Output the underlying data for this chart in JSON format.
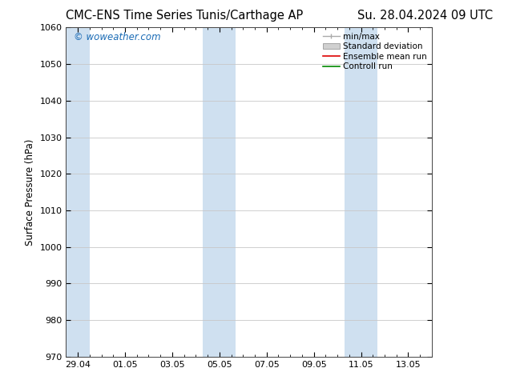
{
  "title_left": "CMC-ENS Time Series Tunis/Carthage AP",
  "title_right": "Su. 28.04.2024 09 UTC",
  "ylabel": "Surface Pressure (hPa)",
  "ylim": [
    970,
    1060
  ],
  "yticks": [
    970,
    980,
    990,
    1000,
    1010,
    1020,
    1030,
    1040,
    1050,
    1060
  ],
  "xtick_labels": [
    "29.04",
    "01.05",
    "03.05",
    "05.05",
    "07.05",
    "09.05",
    "11.05",
    "13.05"
  ],
  "xlim": [
    0,
    15.5
  ],
  "shaded_bands": [
    {
      "x_start": 0.0,
      "x_end": 1.0,
      "color": "#cfe0f0"
    },
    {
      "x_start": 5.8,
      "x_end": 7.2,
      "color": "#cfe0f0"
    },
    {
      "x_start": 11.8,
      "x_end": 13.2,
      "color": "#cfe0f0"
    }
  ],
  "watermark": "© woweather.com",
  "watermark_color": "#1a6bb5",
  "background_color": "#ffffff",
  "plot_bg_color": "#ffffff",
  "grid_color": "#c8c8c8",
  "title_fontsize": 10.5,
  "axis_label_fontsize": 8.5,
  "tick_fontsize": 8,
  "legend_fontsize": 7.5
}
